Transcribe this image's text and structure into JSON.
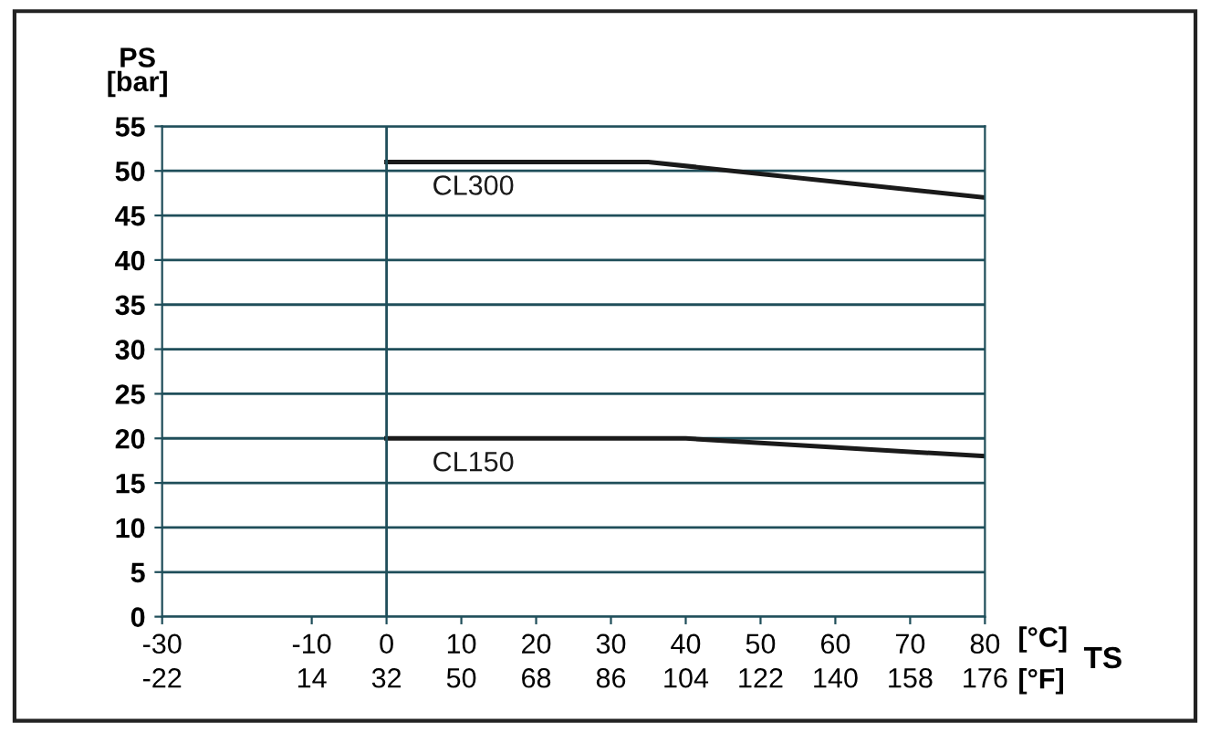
{
  "chart_data": {
    "type": "line",
    "ylabel": "PS\n[bar]",
    "xlabel": "TS",
    "annotations": [
      "[°C]",
      "[°F]"
    ],
    "series": [
      {
        "name": "CL300",
        "color": "#1a1a1a",
        "x": [
          0,
          35,
          80
        ],
        "values": [
          51,
          51,
          47
        ]
      },
      {
        "name": "CL150",
        "color": "#1a1a1a",
        "x": [
          0,
          40,
          80
        ],
        "values": [
          20,
          20,
          18
        ]
      }
    ],
    "xlim": [
      -30,
      80
    ],
    "xticks": [
      -30,
      -10,
      0,
      10,
      20,
      30,
      40,
      50,
      60,
      70,
      80
    ],
    "x2lim": [
      -22,
      176
    ],
    "x2ticks": [
      -22,
      14,
      32,
      50,
      68,
      86,
      104,
      122,
      140,
      158,
      176
    ],
    "ylim": [
      0,
      55
    ],
    "yticks": [
      0,
      5,
      10,
      15,
      20,
      25,
      30,
      35,
      40,
      45,
      50,
      55
    ],
    "ref_lines": [
      {
        "axis": "x",
        "value": 0,
        "color": "#1f4e5a"
      }
    ],
    "grid": "y",
    "marker": "none",
    "line_style": "solid",
    "legend": false
  }
}
